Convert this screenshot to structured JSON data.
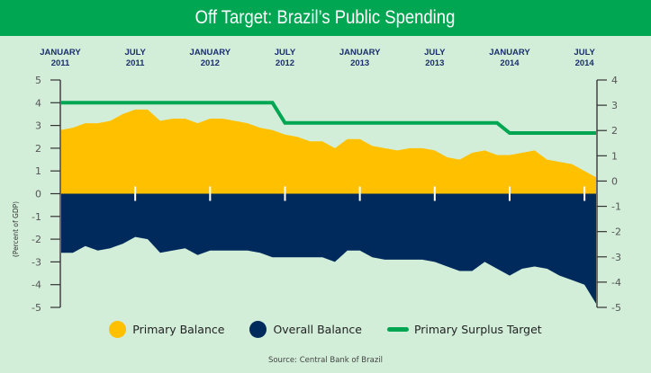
{
  "title": "Off Target: Brazil’s Public Spending",
  "source": "Source: Central Bank of Brazil",
  "colors": {
    "title_bar": "#00a651",
    "background": "#d2eed9",
    "primary_balance": "#ffc000",
    "overall_balance": "#002a5c",
    "target": "#00a651"
  },
  "chart_data": {
    "type": "area",
    "title": "Off Target: Brazil’s Public Spending",
    "ylabel": "(Percent of GDP)",
    "left_axis": {
      "ylim": [
        -5,
        5
      ],
      "ticks": [
        "5",
        "4",
        "3",
        "2",
        "1",
        "0",
        "-1",
        "-2",
        "-3",
        "-4",
        "-5"
      ]
    },
    "right_axis": {
      "ylim": [
        -5,
        4
      ],
      "ticks": [
        "4",
        "3",
        "2",
        "1",
        "0",
        "-1",
        "-2",
        "-3",
        "-4",
        "-5"
      ]
    },
    "x_tick_labels": [
      {
        "line1": "JANUARY",
        "line2": "2011",
        "month_index": 0
      },
      {
        "line1": "JULY",
        "line2": "2011",
        "month_index": 6
      },
      {
        "line1": "JANUARY",
        "line2": "2012",
        "month_index": 12
      },
      {
        "line1": "JULY",
        "line2": "2012",
        "month_index": 18
      },
      {
        "line1": "JANUARY",
        "line2": "2013",
        "month_index": 24
      },
      {
        "line1": "JULY",
        "line2": "2013",
        "month_index": 30
      },
      {
        "line1": "JANUARY",
        "line2": "2014",
        "month_index": 36
      },
      {
        "line1": "JULY",
        "line2": "2014",
        "month_index": 42
      }
    ],
    "x": [
      "2011-01",
      "2011-02",
      "2011-03",
      "2011-04",
      "2011-05",
      "2011-06",
      "2011-07",
      "2011-08",
      "2011-09",
      "2011-10",
      "2011-11",
      "2011-12",
      "2012-01",
      "2012-02",
      "2012-03",
      "2012-04",
      "2012-05",
      "2012-06",
      "2012-07",
      "2012-08",
      "2012-09",
      "2012-10",
      "2012-11",
      "2012-12",
      "2013-01",
      "2013-02",
      "2013-03",
      "2013-04",
      "2013-05",
      "2013-06",
      "2013-07",
      "2013-08",
      "2013-09",
      "2013-10",
      "2013-11",
      "2013-12",
      "2014-01",
      "2014-02",
      "2014-03",
      "2014-04",
      "2014-05",
      "2014-06",
      "2014-07",
      "2014-08"
    ],
    "series": [
      {
        "name": "Primary Balance",
        "axis": "left",
        "color": "#ffc000",
        "values": [
          2.8,
          2.9,
          3.1,
          3.1,
          3.2,
          3.5,
          3.7,
          3.7,
          3.2,
          3.3,
          3.3,
          3.1,
          3.3,
          3.3,
          3.2,
          3.1,
          2.9,
          2.8,
          2.6,
          2.5,
          2.3,
          2.3,
          2.0,
          2.4,
          2.4,
          2.1,
          2.0,
          1.9,
          2.0,
          2.0,
          1.9,
          1.6,
          1.5,
          1.8,
          1.9,
          1.7,
          1.7,
          1.8,
          1.9,
          1.5,
          1.4,
          1.3,
          1.0,
          0.7
        ]
      },
      {
        "name": "Overall Balance",
        "axis": "left",
        "color": "#002a5c",
        "values": [
          -2.6,
          -2.6,
          -2.3,
          -2.5,
          -2.4,
          -2.2,
          -1.9,
          -2.0,
          -2.6,
          -2.5,
          -2.4,
          -2.7,
          -2.5,
          -2.5,
          -2.5,
          -2.5,
          -2.6,
          -2.8,
          -2.8,
          -2.8,
          -2.8,
          -2.8,
          -3.0,
          -2.5,
          -2.5,
          -2.8,
          -2.9,
          -2.9,
          -2.9,
          -2.9,
          -3.0,
          -3.2,
          -3.4,
          -3.4,
          -3.0,
          -3.3,
          -3.6,
          -3.3,
          -3.2,
          -3.3,
          -3.6,
          -3.8,
          -4.0,
          -4.9
        ]
      },
      {
        "name": "Primary Surplus Target",
        "axis": "right",
        "color": "#00a651",
        "values": [
          3.1,
          3.1,
          3.1,
          3.1,
          3.1,
          3.1,
          3.1,
          3.1,
          3.1,
          3.1,
          3.1,
          3.1,
          3.1,
          3.1,
          3.1,
          3.1,
          3.1,
          3.1,
          2.3,
          2.3,
          2.3,
          2.3,
          2.3,
          2.3,
          2.3,
          2.3,
          2.3,
          2.3,
          2.3,
          2.3,
          2.3,
          2.3,
          2.3,
          2.3,
          2.3,
          2.3,
          1.9,
          1.9,
          1.9,
          1.9,
          1.9,
          1.9,
          1.9,
          1.9
        ]
      }
    ],
    "legend": {
      "position": "bottom",
      "entries": [
        "Primary Balance",
        "Overall Balance",
        "Primary Surplus Target"
      ]
    },
    "grid": false
  }
}
